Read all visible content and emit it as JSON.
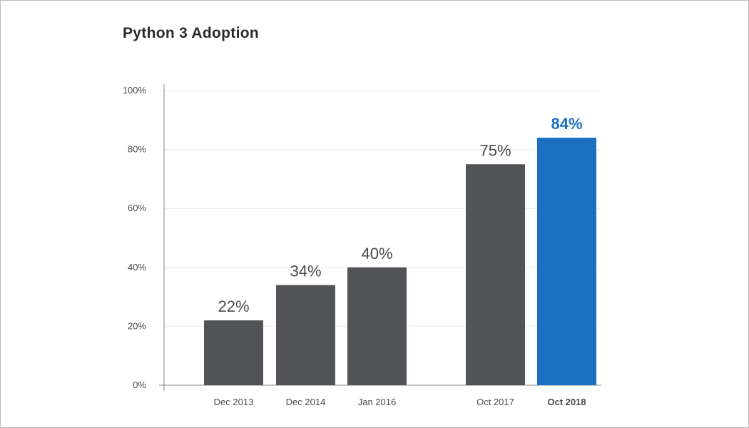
{
  "chart_data": {
    "type": "bar",
    "title": "Python 3 Adoption",
    "xlabel": "",
    "ylabel": "",
    "ylim": [
      0,
      100
    ],
    "y_ticks": [
      "0%",
      "20%",
      "40%",
      "60%",
      "80%",
      "100%"
    ],
    "y_tick_values": [
      0,
      20,
      40,
      60,
      80,
      100
    ],
    "grid": true,
    "categories": [
      "Dec 2013",
      "Dec 2014",
      "Jan 2016",
      "Oct 2017",
      "Oct 2018"
    ],
    "values": [
      22,
      34,
      40,
      75,
      84
    ],
    "value_labels": [
      "22%",
      "34%",
      "40%",
      "75%",
      "84%"
    ],
    "highlight_index": 4
  },
  "colors": {
    "bar": "#525356",
    "highlight": "#1a70bf",
    "grid": "#ececec",
    "axis": "#8a8a8a",
    "label": "#4a4a4a"
  }
}
